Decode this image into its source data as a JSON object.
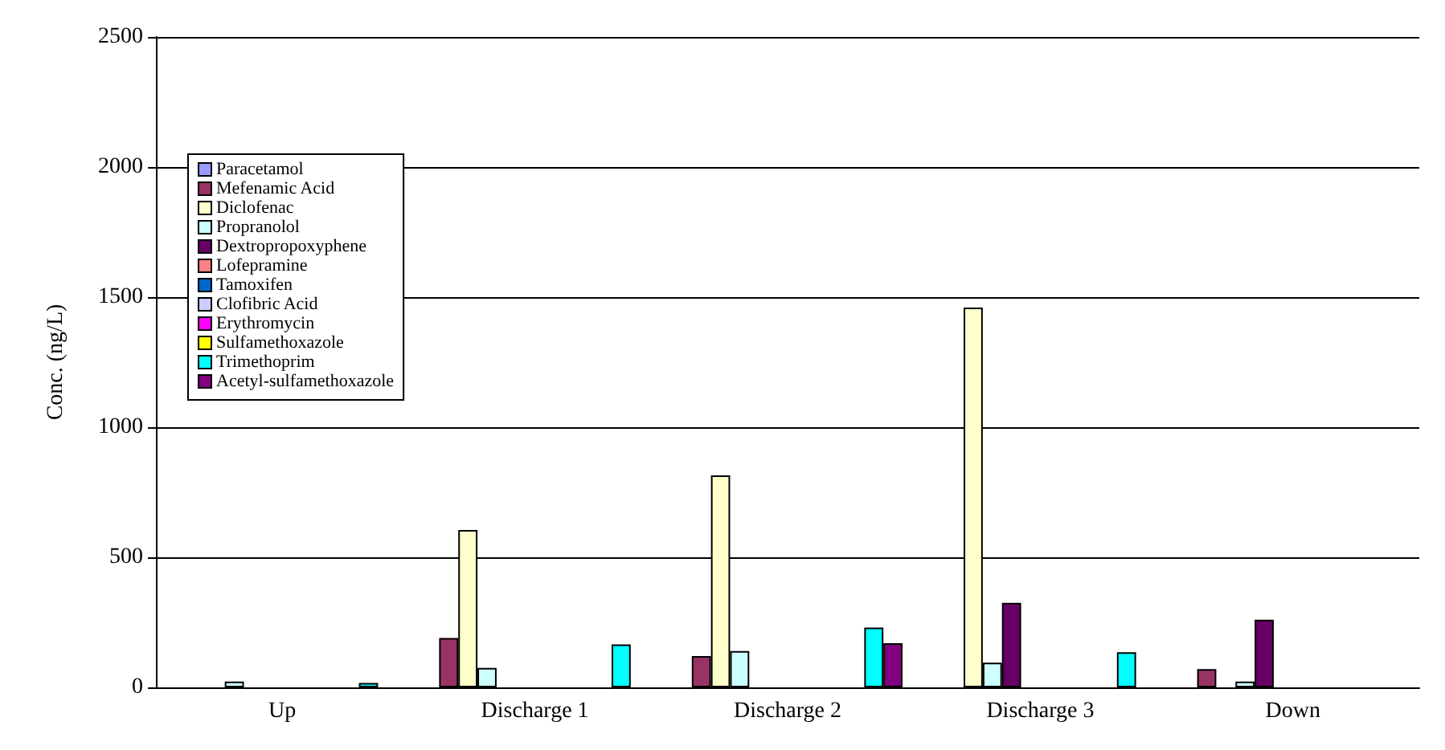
{
  "chart_data": {
    "type": "bar",
    "ylabel": "Conc. (ng/L)",
    "categories": [
      "Up",
      "Discharge 1",
      "Discharge 2",
      "Discharge 3",
      "Down"
    ],
    "series": [
      {
        "name": "Paracetamol",
        "color": "#9999ff",
        "values": [
          null,
          null,
          null,
          null,
          null
        ]
      },
      {
        "name": "Mefenamic Acid",
        "color": "#993366",
        "values": [
          null,
          190,
          120,
          null,
          70
        ]
      },
      {
        "name": "Diclofenac",
        "color": "#ffffcc",
        "values": [
          null,
          605,
          815,
          1460,
          null
        ]
      },
      {
        "name": "Propranolol",
        "color": "#ccffff",
        "values": [
          22,
          75,
          140,
          95,
          22
        ]
      },
      {
        "name": "Dextropropoxyphene",
        "color": "#660066",
        "values": [
          null,
          null,
          null,
          325,
          260
        ]
      },
      {
        "name": "Lofepramine",
        "color": "#ff8080",
        "values": [
          null,
          null,
          null,
          null,
          null
        ]
      },
      {
        "name": "Tamoxifen",
        "color": "#0066cc",
        "values": [
          null,
          null,
          null,
          null,
          null
        ]
      },
      {
        "name": "Clofibric Acid",
        "color": "#ccccff",
        "values": [
          null,
          null,
          null,
          null,
          null
        ]
      },
      {
        "name": "Erythromycin",
        "color": "#ff00ff",
        "values": [
          null,
          null,
          null,
          null,
          null
        ]
      },
      {
        "name": "Sulfamethoxazole",
        "color": "#ffff00",
        "values": [
          null,
          null,
          null,
          null,
          null
        ]
      },
      {
        "name": "Trimethoprim",
        "color": "#00ffff",
        "values": [
          17,
          165,
          230,
          135,
          null
        ]
      },
      {
        "name": "Acetyl-sulfamethoxazole",
        "color": "#800080",
        "values": [
          null,
          null,
          170,
          null,
          null
        ]
      }
    ],
    "ylim": [
      0,
      2500
    ],
    "yticks": [
      0,
      500,
      1000,
      1500,
      2000,
      2500
    ],
    "grid": "y",
    "legend": "top left"
  }
}
